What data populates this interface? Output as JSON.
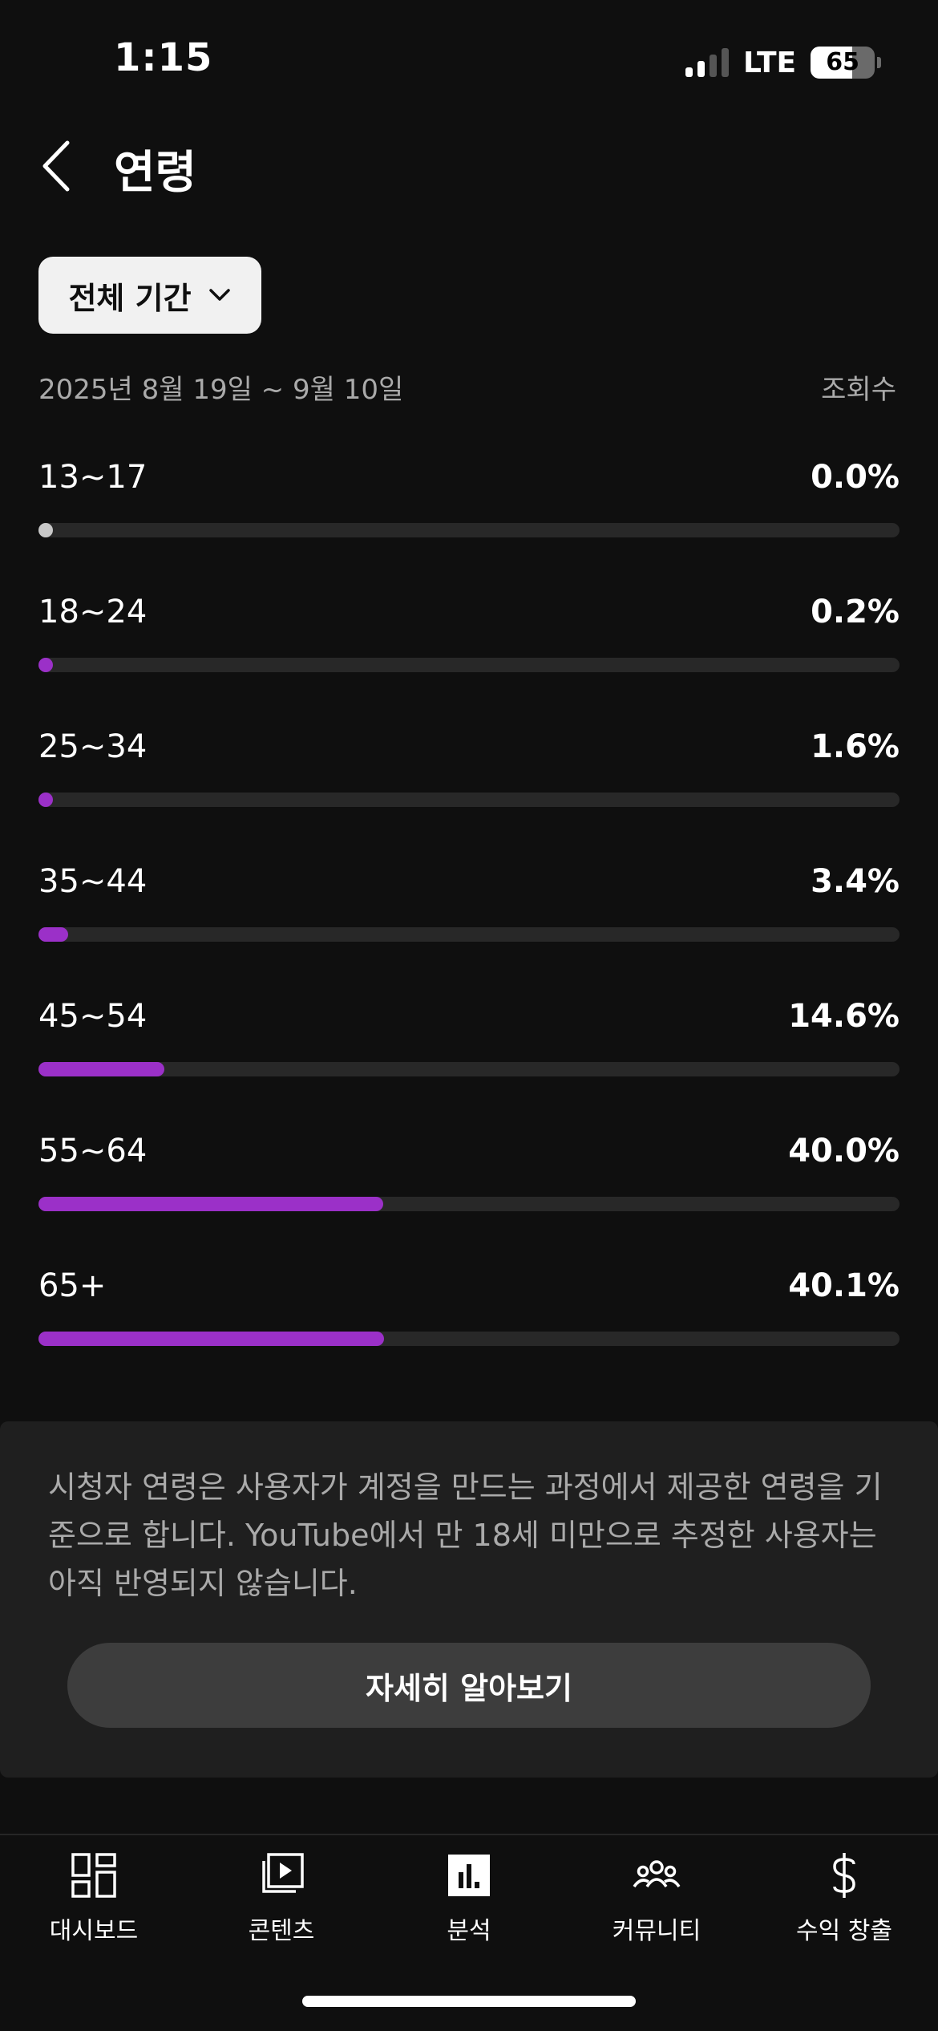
{
  "status_bar": {
    "time": "1:15",
    "network": "LTE",
    "battery": "65"
  },
  "header": {
    "title": "연령",
    "back_icon": "chevron-left-icon"
  },
  "filter": {
    "label": "전체 기간",
    "icon": "chevron-down-icon"
  },
  "date_range": "2025년 8월 19일 ~ 9월 10일",
  "metric_label": "조회수",
  "colors": {
    "bar_fill": "#9b30c8",
    "bar_zero": "#c8c8c8",
    "track": "#282828",
    "background": "#0f0f0f"
  },
  "age_groups": [
    {
      "label": "13~17",
      "value_text": "0.0%",
      "percent": 0.0
    },
    {
      "label": "18~24",
      "value_text": "0.2%",
      "percent": 0.2
    },
    {
      "label": "25~34",
      "value_text": "1.6%",
      "percent": 1.6
    },
    {
      "label": "35~44",
      "value_text": "3.4%",
      "percent": 3.4
    },
    {
      "label": "45~54",
      "value_text": "14.6%",
      "percent": 14.6
    },
    {
      "label": "55~64",
      "value_text": "40.0%",
      "percent": 40.0
    },
    {
      "label": "65+",
      "value_text": "40.1%",
      "percent": 40.1
    }
  ],
  "info": {
    "text": "시청자 연령은 사용자가 계정을 만드는 과정에서 제공한 연령을 기준으로 합니다. YouTube에서 만 18세 미만으로 추정한 사용자는 아직 반영되지 않습니다.",
    "button_label": "자세히 알아보기"
  },
  "nav": [
    {
      "label": "대시보드",
      "icon": "dashboard-icon"
    },
    {
      "label": "콘텐츠",
      "icon": "content-play-icon"
    },
    {
      "label": "분석",
      "icon": "analytics-icon",
      "selected": true
    },
    {
      "label": "커뮤니티",
      "icon": "community-icon"
    },
    {
      "label": "수익 창출",
      "icon": "dollar-icon"
    }
  ]
}
